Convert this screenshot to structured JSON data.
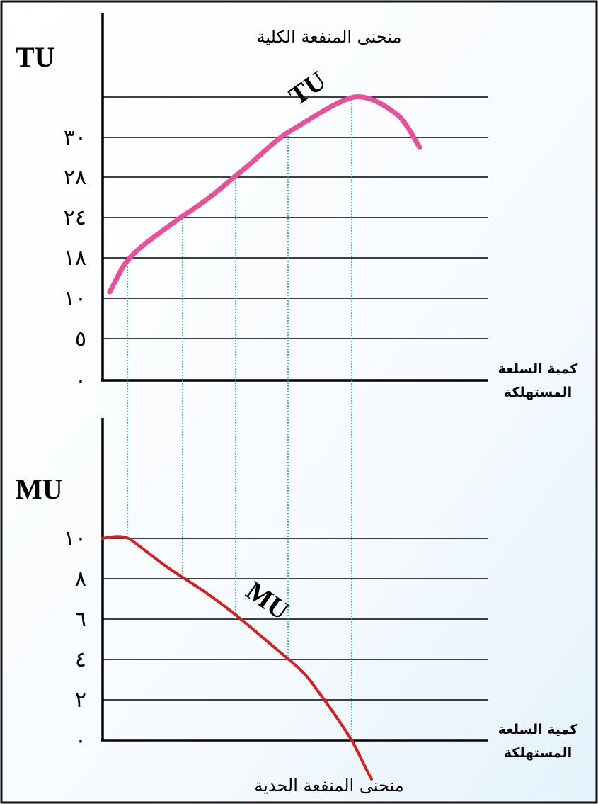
{
  "top": {
    "title": "منحنى المنفعة الكلية",
    "axis_label": "TU",
    "curve_label": "TU",
    "x_label": [
      "كمية السلعة",
      "المستهلكة"
    ],
    "y_labels": [
      "٣٠",
      "٢٨",
      "٢٤",
      "١٨",
      "١٠",
      "٥",
      "٠"
    ]
  },
  "bottom": {
    "title": "منحنى المنفعة الحدية",
    "axis_label": "MU",
    "curve_label": "MU",
    "x_label": [
      "كمية السلعة",
      "المستهلكة"
    ],
    "y_labels": [
      "١٠",
      "٨",
      "٦",
      "٤",
      "٢",
      "٠"
    ]
  }
}
